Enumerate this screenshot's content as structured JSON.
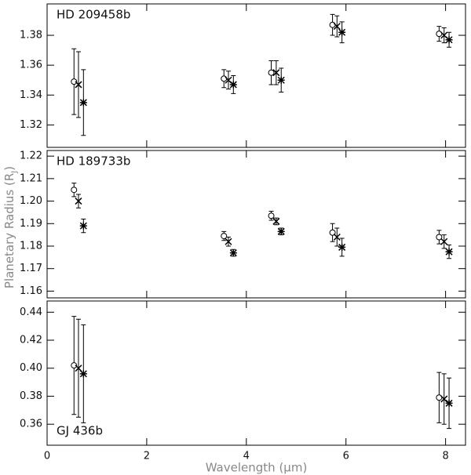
{
  "chart_data": [
    {
      "type": "scatter",
      "label": "HD 209458b",
      "label_corner": "upper left",
      "xlim": [
        0,
        8.4
      ],
      "xticks": [
        0,
        2,
        4,
        6,
        8
      ],
      "show_xtick_labels": false,
      "ylim": [
        1.305,
        1.401
      ],
      "yticks": [
        1.32,
        1.34,
        1.36,
        1.38
      ],
      "series": [
        {
          "marker": "circle",
          "color": "#000000",
          "x": [
            0.54,
            3.55,
            4.5,
            5.73,
            7.87
          ],
          "values": [
            1.349,
            1.351,
            1.355,
            1.387,
            1.381
          ],
          "errors": [
            0.022,
            0.006,
            0.008,
            0.007,
            0.005
          ]
        },
        {
          "marker": "cross",
          "color": "#000000",
          "x": [
            0.63,
            3.64,
            4.6,
            5.82,
            7.97
          ],
          "values": [
            1.347,
            1.35,
            1.355,
            1.386,
            1.38
          ],
          "errors": [
            0.022,
            0.006,
            0.008,
            0.007,
            0.005
          ]
        },
        {
          "marker": "asterisk",
          "color": "#000000",
          "x": [
            0.73,
            3.74,
            4.7,
            5.92,
            8.07
          ],
          "values": [
            1.335,
            1.347,
            1.35,
            1.382,
            1.377
          ],
          "errors": [
            0.022,
            0.006,
            0.008,
            0.007,
            0.005
          ]
        }
      ]
    },
    {
      "type": "scatter",
      "label": "HD 189733b",
      "label_corner": "upper left",
      "y_label": [
        "Planetary Radius (R",
        "J",
        ")"
      ],
      "xlim": [
        0,
        8.4
      ],
      "xticks": [
        0,
        2,
        4,
        6,
        8
      ],
      "show_xtick_labels": false,
      "ylim": [
        1.157,
        1.2225
      ],
      "yticks": [
        1.16,
        1.17,
        1.18,
        1.19,
        {
          "value": 1.2,
          "label": "1.20"
        },
        1.21,
        1.22
      ],
      "series": [
        {
          "marker": "circle",
          "color": "#000000",
          "x": [
            0.54,
            3.55,
            4.5,
            5.73,
            7.87
          ],
          "values": [
            1.205,
            1.1845,
            1.1935,
            1.186,
            1.184
          ],
          "errors": [
            0.003,
            0.002,
            0.002,
            0.004,
            0.003
          ]
        },
        {
          "marker": "cross",
          "color": "#000000",
          "x": [
            0.63,
            3.64,
            4.6,
            5.82,
            7.97
          ],
          "values": [
            1.2,
            1.182,
            1.191,
            1.184,
            1.182
          ],
          "errors": [
            0.003,
            0.002,
            0.0015,
            0.004,
            0.003
          ]
        },
        {
          "marker": "asterisk",
          "color": "#000000",
          "x": [
            0.73,
            3.74,
            4.7,
            5.92,
            8.07
          ],
          "values": [
            1.189,
            1.177,
            1.1865,
            1.1795,
            1.1775
          ],
          "errors": [
            0.003,
            0.0015,
            0.0015,
            0.004,
            0.003
          ]
        }
      ]
    },
    {
      "type": "scatter",
      "label": "GJ 436b",
      "label_corner": "lower left",
      "x_label": "Wavelength (μm)",
      "xlim": [
        0,
        8.4
      ],
      "xticks": [
        0,
        2,
        4,
        6,
        8
      ],
      "show_xtick_labels": true,
      "ylim": [
        0.345,
        0.448
      ],
      "yticks": [
        0.36,
        0.38,
        {
          "value": 0.4,
          "label": "0.40"
        },
        0.42,
        0.44
      ],
      "series": [
        {
          "marker": "circle",
          "color": "#000000",
          "x": [
            0.54,
            7.87
          ],
          "values": [
            0.402,
            0.379
          ],
          "errors": [
            0.035,
            0.018
          ]
        },
        {
          "marker": "cross",
          "color": "#000000",
          "x": [
            0.63,
            7.97
          ],
          "values": [
            0.4,
            0.378
          ],
          "errors": [
            0.035,
            0.018
          ]
        },
        {
          "marker": "asterisk",
          "color": "#000000",
          "x": [
            0.73,
            8.07
          ],
          "values": [
            0.396,
            0.375
          ],
          "errors": [
            0.035,
            0.018
          ]
        }
      ]
    }
  ]
}
